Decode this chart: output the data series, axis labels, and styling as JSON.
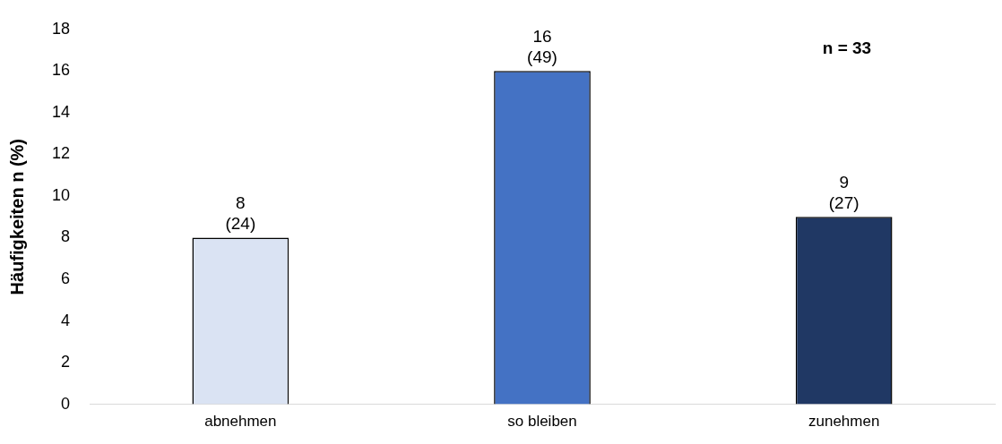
{
  "chart_data": {
    "type": "bar",
    "ylabel": "Häufigkeiten n (%)",
    "categories": [
      "abnehmen",
      "so bleiben",
      "zunehmen"
    ],
    "values": [
      8,
      16,
      9
    ],
    "colors": [
      "#dae3f3",
      "#4472c4",
      "#203864"
    ],
    "value_labels": [
      "8\n(24)",
      "16\n(49)",
      "9\n(27)"
    ],
    "annotations": [
      "n = 33"
    ],
    "ylim": [
      0,
      18
    ],
    "yticks": [
      0,
      2,
      4,
      6,
      8,
      10,
      12,
      14,
      16,
      18
    ],
    "grid": false,
    "legend": false
  }
}
